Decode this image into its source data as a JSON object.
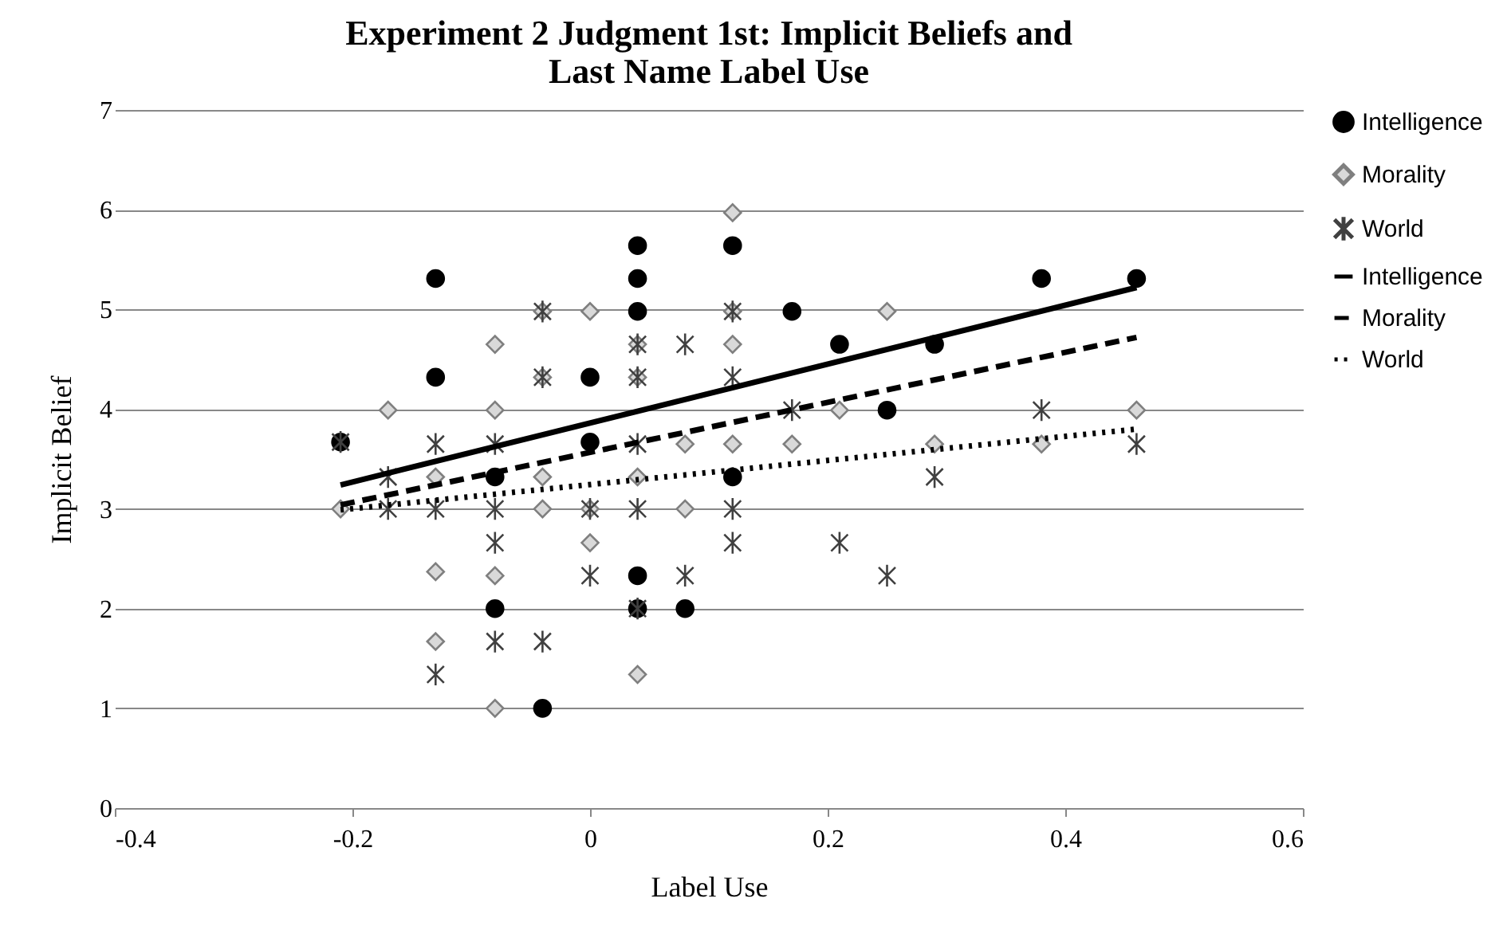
{
  "chart_data": {
    "type": "scatter",
    "title": "Experiment 2 Judgment 1st: Implicit Beliefs and Last Name Label Use",
    "xlabel": "Label Use",
    "ylabel": "Implicit Belief",
    "xlim": [
      -0.4,
      0.6
    ],
    "xticks": [
      -0.4,
      -0.2,
      0,
      0.2,
      0.4,
      0.6
    ],
    "ylim": [
      0,
      7
    ],
    "yticks": [
      0,
      1,
      2,
      3,
      4,
      5,
      6,
      7
    ],
    "grid": "y",
    "legend": "right",
    "series": [
      {
        "name": "Intelligence",
        "marker": "circle",
        "color": "#000000",
        "x": [
          -0.21,
          -0.13,
          -0.13,
          -0.08,
          -0.08,
          -0.04,
          0,
          0,
          0.04,
          0.04,
          0.04,
          0.04,
          0.04,
          0.08,
          0.12,
          0.12,
          0.17,
          0.21,
          0.25,
          0.29,
          0.38,
          0.46
        ],
        "values": [
          3.67,
          5.31,
          4.32,
          3.32,
          2.0,
          1.0,
          4.32,
          3.67,
          5.64,
          5.31,
          4.98,
          2.33,
          2.0,
          2.0,
          5.64,
          3.32,
          4.98,
          4.65,
          3.99,
          4.65,
          5.31,
          5.31
        ]
      },
      {
        "name": "Morality",
        "marker": "diamond",
        "color": "#d9d9d9",
        "x": [
          -0.21,
          -0.17,
          -0.13,
          -0.13,
          -0.13,
          -0.08,
          -0.08,
          -0.08,
          -0.08,
          -0.04,
          -0.04,
          -0.04,
          -0.04,
          0,
          0,
          0,
          0.04,
          0.04,
          0.04,
          0.04,
          0.08,
          0.08,
          0.12,
          0.12,
          0.12,
          0.12,
          0.17,
          0.21,
          0.25,
          0.29,
          0.38,
          0.46
        ],
        "values": [
          3.0,
          3.99,
          2.37,
          1.67,
          3.32,
          4.65,
          3.99,
          2.33,
          1.0,
          4.98,
          4.32,
          3.32,
          3.0,
          4.98,
          3.0,
          2.66,
          4.65,
          4.32,
          3.32,
          1.34,
          3.65,
          3.0,
          5.97,
          4.98,
          4.65,
          3.65,
          3.65,
          3.99,
          4.98,
          3.65,
          3.65,
          3.99
        ]
      },
      {
        "name": "World",
        "marker": "cross",
        "color": "#404040",
        "x": [
          -0.21,
          -0.17,
          -0.17,
          -0.13,
          -0.13,
          -0.13,
          -0.08,
          -0.08,
          -0.08,
          -0.08,
          -0.04,
          -0.04,
          -0.04,
          0,
          0,
          0.04,
          0.04,
          0.04,
          0.04,
          0.04,
          0.08,
          0.08,
          0.12,
          0.12,
          0.12,
          0.12,
          0.17,
          0.21,
          0.25,
          0.29,
          0.38,
          0.46
        ],
        "values": [
          3.67,
          3.32,
          3.0,
          3.65,
          3.0,
          1.34,
          3.65,
          3.0,
          2.66,
          1.67,
          4.98,
          4.32,
          1.67,
          3.0,
          2.33,
          4.65,
          4.32,
          3.65,
          3.0,
          2.0,
          4.65,
          2.33,
          4.98,
          4.32,
          3.0,
          2.66,
          3.99,
          2.66,
          2.33,
          3.32,
          3.99,
          3.65
        ]
      },
      {
        "name": "Intelligence",
        "type": "line",
        "line_style": "solid",
        "color": "#000000",
        "x": [
          -0.21,
          0.46
        ],
        "values": [
          3.24,
          5.22
        ]
      },
      {
        "name": "Morality",
        "type": "line",
        "line_style": "dashed",
        "color": "#000000",
        "x": [
          -0.21,
          0.46
        ],
        "values": [
          3.04,
          4.72
        ]
      },
      {
        "name": "World",
        "type": "line",
        "line_style": "dotted",
        "color": "#000000",
        "x": [
          -0.21,
          0.46
        ],
        "values": [
          2.99,
          3.8
        ]
      }
    ]
  }
}
